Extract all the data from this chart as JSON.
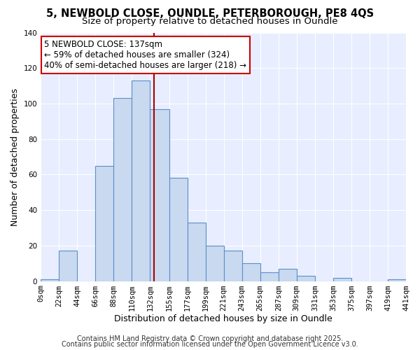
{
  "title": "5, NEWBOLD CLOSE, OUNDLE, PETERBOROUGH, PE8 4QS",
  "subtitle": "Size of property relative to detached houses in Oundle",
  "xlabel": "Distribution of detached houses by size in Oundle",
  "ylabel": "Number of detached properties",
  "bin_edges": [
    0,
    22,
    44,
    66,
    88,
    110,
    132,
    155,
    177,
    199,
    221,
    243,
    265,
    287,
    309,
    331,
    353,
    375,
    397,
    419,
    441
  ],
  "bar_heights": [
    1,
    17,
    0,
    65,
    103,
    113,
    97,
    58,
    33,
    20,
    17,
    10,
    5,
    7,
    3,
    0,
    2,
    0,
    0,
    1
  ],
  "bar_facecolor": "#c9d9f0",
  "bar_edgecolor": "#5b8fc9",
  "vline_x": 137,
  "vline_color": "#aa0000",
  "annotation_line1": "5 NEWBOLD CLOSE: 137sqm",
  "annotation_line2": "← 59% of detached houses are smaller (324)",
  "annotation_line3": "40% of semi-detached houses are larger (218) →",
  "annotation_box_facecolor": "#ffffff",
  "annotation_box_edgecolor": "#cc0000",
  "ylim": [
    0,
    140
  ],
  "yticks": [
    0,
    20,
    40,
    60,
    80,
    100,
    120,
    140
  ],
  "tick_labels": [
    "0sqm",
    "22sqm",
    "44sqm",
    "66sqm",
    "88sqm",
    "110sqm",
    "132sqm",
    "155sqm",
    "177sqm",
    "199sqm",
    "221sqm",
    "243sqm",
    "265sqm",
    "287sqm",
    "309sqm",
    "331sqm",
    "353sqm",
    "375sqm",
    "397sqm",
    "419sqm",
    "441sqm"
  ],
  "footer_line1": "Contains HM Land Registry data © Crown copyright and database right 2025.",
  "footer_line2": "Contains public sector information licensed under the Open Government Licence v3.0.",
  "background_color": "#ffffff",
  "plot_bg_color": "#e8eeff",
  "grid_color": "#ffffff",
  "title_fontsize": 10.5,
  "subtitle_fontsize": 9.5,
  "axis_label_fontsize": 9,
  "tick_fontsize": 7.5,
  "footer_fontsize": 7,
  "annot_fontsize": 8.5
}
